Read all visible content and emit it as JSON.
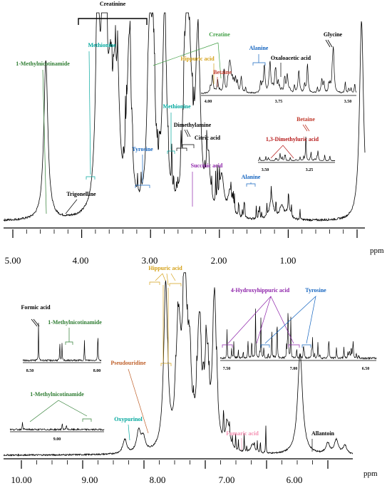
{
  "chart_data": [
    {
      "type": "line",
      "name": "aliphatic-region",
      "xlabel": "ppm",
      "x_range": [
        5.4,
        0.1
      ],
      "x_ticks": [
        "5.00",
        "4.00",
        "3.00",
        "2.00",
        "1.00"
      ],
      "x_tick_values": [
        5.0,
        4.0,
        3.0,
        2.0,
        1.0
      ],
      "reversed_x": true,
      "peaks": [
        {
          "x": 4.78,
          "h": 0.8
        },
        {
          "x": 4.02,
          "h": 0.98
        },
        {
          "x": 3.94,
          "h": 0.72
        },
        {
          "x": 3.91,
          "h": 0.6
        },
        {
          "x": 3.84,
          "h": 0.45
        },
        {
          "x": 3.77,
          "h": 0.5
        },
        {
          "x": 3.72,
          "h": 0.4
        },
        {
          "x": 3.56,
          "h": 0.82
        },
        {
          "x": 3.27,
          "h": 0.52
        },
        {
          "x": 3.24,
          "h": 0.48
        },
        {
          "x": 3.2,
          "h": 0.42
        },
        {
          "x": 3.04,
          "h": 0.98
        },
        {
          "x": 2.73,
          "h": 0.52
        },
        {
          "x": 2.7,
          "h": 0.55
        },
        {
          "x": 2.66,
          "h": 0.4
        },
        {
          "x": 2.56,
          "h": 0.6
        },
        {
          "x": 2.53,
          "h": 0.35
        },
        {
          "x": 2.4,
          "h": 0.25
        },
        {
          "x": 2.2,
          "h": 0.2
        },
        {
          "x": 2.08,
          "h": 0.12
        },
        {
          "x": 1.47,
          "h": 0.1
        },
        {
          "x": 1.32,
          "h": 0.07
        },
        {
          "x": 1.22,
          "h": 0.05
        },
        {
          "x": 0.15,
          "h": 1.0
        }
      ],
      "annotations": [
        {
          "text": "Creatinine",
          "color": "#000000"
        },
        {
          "text": "1-Methylnicotinamide",
          "color": "#2e7d32"
        },
        {
          "text": "Methionine",
          "color": "#00a79d"
        },
        {
          "text": "Methionine",
          "color": "#00a79d"
        },
        {
          "text": "Tyrosine",
          "color": "#1565c0"
        },
        {
          "text": "Trigonelline",
          "color": "#000000"
        },
        {
          "text": "Dimethylamine",
          "color": "#000000"
        },
        {
          "text": "Citric acid",
          "color": "#000000"
        },
        {
          "text": "Succinic acid",
          "color": "#8e24aa"
        },
        {
          "text": "Alanine",
          "color": "#1565c0"
        }
      ]
    },
    {
      "type": "line",
      "name": "aliphatic-inset",
      "x_range": [
        4.02,
        3.48
      ],
      "x_ticks": [
        "4.00",
        "3.75",
        "3.50"
      ],
      "x_tick_values": [
        4.0,
        3.75,
        3.5
      ],
      "annotations": [
        {
          "text": "Creatine",
          "color": "#43a047"
        },
        {
          "text": "Hippuric acid",
          "color": "#d4a017"
        },
        {
          "text": "Betaine",
          "color": "#c0392b"
        },
        {
          "text": "Alanine",
          "color": "#1565c0"
        },
        {
          "text": "Oxaloacetic acid",
          "color": "#000000"
        },
        {
          "text": "Glycine",
          "color": "#000000"
        }
      ]
    },
    {
      "type": "line",
      "name": "betaine-inset",
      "x_range": [
        3.55,
        3.1
      ],
      "x_ticks": [
        "3.50",
        "3.25"
      ],
      "x_tick_values": [
        3.5,
        3.25
      ],
      "annotations": [
        {
          "text": "Betaine",
          "color": "#c0392b"
        },
        {
          "text": "1,3-Dimethyluric acid",
          "color": "#b71c1c"
        }
      ]
    },
    {
      "type": "line",
      "name": "aromatic-region",
      "xlabel": "ppm",
      "x_range": [
        10.3,
        5.0
      ],
      "x_ticks": [
        "10.00",
        "9.00",
        "8.00",
        "7.00",
        "6.00"
      ],
      "x_tick_values": [
        10.0,
        9.0,
        8.0,
        7.0,
        6.0
      ],
      "reversed_x": true,
      "peaks": [
        {
          "x": 8.46,
          "h": 0.08
        },
        {
          "x": 8.25,
          "h": 0.12
        },
        {
          "x": 8.18,
          "h": 0.08
        },
        {
          "x": 7.84,
          "h": 0.95
        },
        {
          "x": 7.66,
          "h": 0.4
        },
        {
          "x": 7.63,
          "h": 0.35
        },
        {
          "x": 7.55,
          "h": 0.95
        },
        {
          "x": 7.48,
          "h": 0.4
        },
        {
          "x": 7.33,
          "h": 0.68
        },
        {
          "x": 7.22,
          "h": 0.5
        },
        {
          "x": 7.1,
          "h": 0.82
        },
        {
          "x": 6.9,
          "h": 0.15
        },
        {
          "x": 6.52,
          "h": 0.05
        },
        {
          "x": 5.8,
          "h": 0.58
        },
        {
          "x": 5.38,
          "h": 0.06
        },
        {
          "x": 5.25,
          "h": 0.08
        },
        {
          "x": 5.12,
          "h": 0.05
        }
      ],
      "annotations": [
        {
          "text": "Hippuric acid",
          "color": "#d4a017"
        },
        {
          "text": "Pseudouridine",
          "color": "#c0622d"
        },
        {
          "text": "Oxypurinol",
          "color": "#00a79d"
        },
        {
          "text": "Fumaric acid",
          "color": "#f48fb1"
        },
        {
          "text": "Allantoin",
          "color": "#000000"
        }
      ]
    },
    {
      "type": "line",
      "name": "formic-inset",
      "x_range": [
        8.6,
        7.9
      ],
      "x_ticks": [
        "8.50",
        "8.00"
      ],
      "x_tick_values": [
        8.5,
        8.0
      ],
      "annotations": [
        {
          "text": "Formic acid",
          "color": "#000000"
        },
        {
          "text": "1-Methylnicotinamide",
          "color": "#2e7d32"
        }
      ]
    },
    {
      "type": "line",
      "name": "nmn-inset",
      "x_range": [
        9.4,
        8.5
      ],
      "x_ticks": [
        "9.00"
      ],
      "x_tick_values": [
        9.0
      ],
      "annotations": [
        {
          "text": "1-Methylnicotinamide",
          "color": "#2e7d32"
        }
      ]
    },
    {
      "type": "line",
      "name": "aromatic-inset",
      "x_range": [
        7.6,
        6.45
      ],
      "x_ticks": [
        "7.50",
        "7.00",
        "6.50"
      ],
      "x_tick_values": [
        7.5,
        7.0,
        6.5
      ],
      "annotations": [
        {
          "text": "4-Hydroxyhippuric acid",
          "color": "#8e24aa"
        },
        {
          "text": "Tyrosine",
          "color": "#1565c0"
        }
      ]
    }
  ]
}
